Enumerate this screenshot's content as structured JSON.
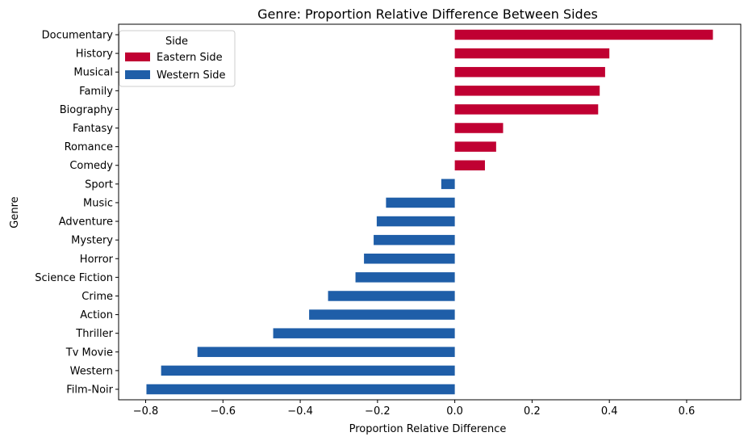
{
  "chart_data": {
    "type": "bar",
    "orientation": "horizontal",
    "title": "Genre: Proportion Relative Difference Between Sides",
    "xlabel": "Proportion Relative Difference",
    "ylabel": "Genre",
    "xlim": [
      -0.87,
      0.74
    ],
    "xticks": [
      -0.8,
      -0.6,
      -0.4,
      -0.2,
      0.0,
      0.2,
      0.4,
      0.6
    ],
    "xtick_labels": [
      "−0.8",
      "−0.6",
      "−0.4",
      "−0.2",
      "0.0",
      "0.2",
      "0.4",
      "0.6"
    ],
    "grid": false,
    "legend": {
      "title": "Side",
      "position": "top-left",
      "entries": [
        {
          "label": "Eastern Side",
          "color": "#c00032"
        },
        {
          "label": "Western Side",
          "color": "#1f5ea8"
        }
      ]
    },
    "colors": {
      "positive": "#c00032",
      "negative": "#1f5ea8"
    },
    "categories": [
      "Documentary",
      "History",
      "Musical",
      "Family",
      "Biography",
      "Fantasy",
      "Romance",
      "Comedy",
      "Sport",
      "Music",
      "Adventure",
      "Mystery",
      "Horror",
      "Science Fiction",
      "Crime",
      "Action",
      "Thriller",
      "Tv Movie",
      "Western",
      "Film-Noir"
    ],
    "values": [
      0.668,
      0.4,
      0.389,
      0.375,
      0.371,
      0.125,
      0.107,
      0.078,
      -0.035,
      -0.178,
      -0.202,
      -0.21,
      -0.235,
      -0.257,
      -0.328,
      -0.377,
      -0.47,
      -0.666,
      -0.76,
      -0.798
    ]
  }
}
